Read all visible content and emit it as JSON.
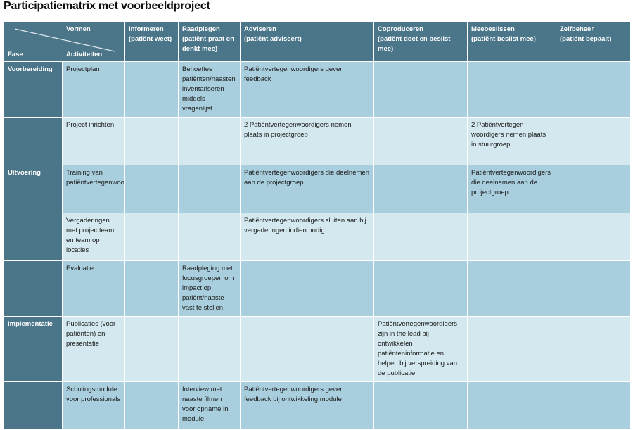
{
  "title": "Participatiematrix met voorbeeldproject",
  "header": {
    "vormen": "Vormen",
    "fase": "Fase",
    "activiteiten": "Activiteiten",
    "columns": [
      {
        "label": "Informeren",
        "sub": "(patiënt weet)"
      },
      {
        "label": "Raadplegen",
        "sub": "(patiënt praat en denkt mee)"
      },
      {
        "label": "Adviseren",
        "sub": "(patiënt adviseert)"
      },
      {
        "label": "Coproduceren",
        "sub": "(patiënt doet en beslist mee)"
      },
      {
        "label": "Meebeslissen",
        "sub": "(patiënt beslist mee)"
      },
      {
        "label": "Zelfbeheer",
        "sub": "(patiënt bepaalt)"
      }
    ]
  },
  "colors": {
    "header": "#4b7689",
    "row_dark": "#a9cfde",
    "row_light": "#d3e8ef"
  },
  "rows": [
    {
      "fase": "Voorbereiding",
      "activiteit": "Projectplan",
      "cells": [
        "",
        "Behoeftes patiënten/naasten inventariseren middels vragenlijst",
        "Patiëntvertegenwoordigers geven feedback",
        "",
        "",
        ""
      ]
    },
    {
      "fase": "",
      "activiteit": "Project inrichten",
      "cells": [
        "",
        "",
        "2 Patiëntvertegenwoordigers nemen plaats in projectgroep",
        "",
        "2 Patiëntvertegen-woordigers nemen plaats in stuurgroep",
        ""
      ]
    },
    {
      "fase": "Uitvoering",
      "activiteit": "Training van patiëntvertegenwoordigers",
      "cells": [
        "",
        "",
        "Patiëntvertegenwoordigers die deelnemen aan de projectgroep",
        "",
        "Patiëntvertegenwoordigers die deelnemen aan de projectgroep",
        ""
      ]
    },
    {
      "fase": "",
      "activiteit": "Vergaderingen met projectteam en team op locaties",
      "cells": [
        "",
        "",
        "Patiëntvertegenwoordigers sluiten aan bij vergaderingen indien nodig",
        "",
        "",
        ""
      ]
    },
    {
      "fase": "",
      "activiteit": "Evaluatie",
      "cells": [
        "",
        "Raadpleging met focusgroepen om impact op patiënt/naaste vast te stellen",
        "",
        "",
        "",
        ""
      ]
    },
    {
      "fase": "Implementatie",
      "activiteit": "Publicaties (voor patiënten) en presentatie",
      "cells": [
        "",
        "",
        "",
        "Patiëntvertegenwoordigers zijn in the lead bij ontwikkelen patiënteninformatie en helpen bij verspreiding van de publicatie",
        "",
        ""
      ]
    },
    {
      "fase": "",
      "activiteit": "Scholingsmodule voor professionals",
      "cells": [
        "",
        "Interview met naaste filmen voor opname in module",
        "Patiëntvertegenwoordigers geven feedback bij ontwikkeling module",
        "",
        "",
        ""
      ]
    }
  ]
}
